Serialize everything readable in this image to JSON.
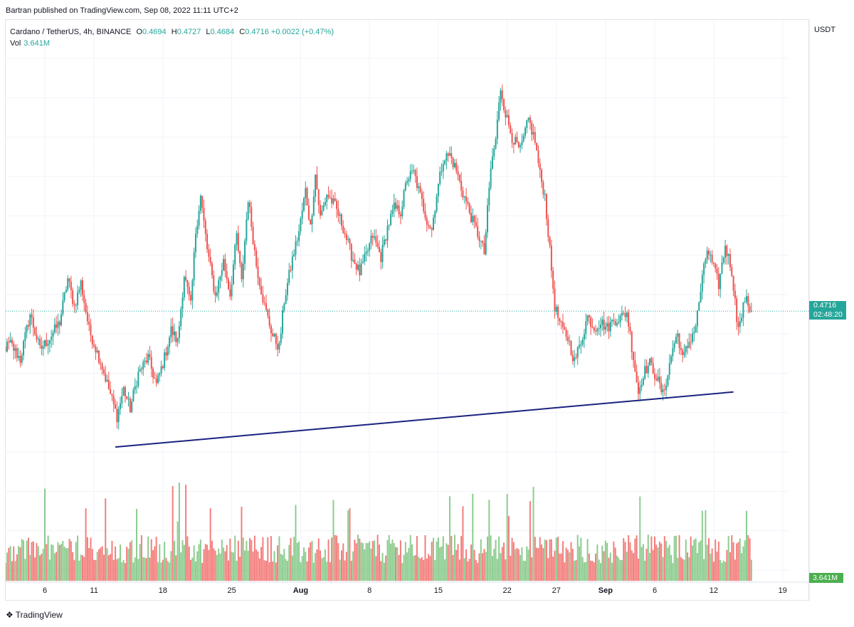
{
  "header": {
    "publish_line": "Bartran published on TradingView.com, Sep 08, 2022 11:11 UTC+2"
  },
  "legend": {
    "symbol": "Cardano / TetherUS, 4h, BINANCE",
    "o_label": "O",
    "o": "0.4694",
    "h_label": "H",
    "h": "0.4727",
    "l_label": "L",
    "l": "0.4684",
    "c_label": "C",
    "c": "0.4716",
    "change": "+0.0022 (+0.47%)",
    "vol_label": "Vol",
    "vol_value": "3.641M"
  },
  "axis": {
    "currency": "USDT",
    "price_label": "0.4716",
    "countdown": "02:48:20",
    "vol_label": "3.641M"
  },
  "footer": {
    "brand": "TradingView",
    "brand_icon": "tradingview-logo-icon"
  },
  "colors": {
    "up": "#26a69a",
    "down": "#ef5350",
    "vol_up": "#66bb6a",
    "vol_down": "#ef5350",
    "trendline": "#1a237e"
  },
  "chart_data": {
    "type": "candlestick",
    "symbol": "ADA/USDT",
    "interval": "4h",
    "ylim": [
      0.335,
      0.618
    ],
    "y_ticks": [
      "0.6000",
      "0.5800",
      "0.5600",
      "0.5400",
      "0.5200",
      "0.5000",
      "0.4800",
      "0.4600",
      "0.4400",
      "0.4200",
      "0.4000",
      "0.3800",
      "0.3600",
      "0.3400"
    ],
    "x_ticks": [
      {
        "label": "6",
        "date": "2022-07-06",
        "bold": false
      },
      {
        "label": "11",
        "date": "2022-07-11",
        "bold": false
      },
      {
        "label": "18",
        "date": "2022-07-18",
        "bold": false
      },
      {
        "label": "25",
        "date": "2022-07-25",
        "bold": false
      },
      {
        "label": "Aug",
        "date": "2022-08-01",
        "bold": true
      },
      {
        "label": "8",
        "date": "2022-08-08",
        "bold": false
      },
      {
        "label": "15",
        "date": "2022-08-15",
        "bold": false
      },
      {
        "label": "22",
        "date": "2022-08-22",
        "bold": false
      },
      {
        "label": "27",
        "date": "2022-08-27",
        "bold": false
      },
      {
        "label": "Sep",
        "date": "2022-09-01",
        "bold": true
      },
      {
        "label": "6",
        "date": "2022-09-06",
        "bold": false
      },
      {
        "label": "12",
        "date": "2022-09-12",
        "bold": false
      },
      {
        "label": "19",
        "date": "2022-09-19",
        "bold": false
      }
    ],
    "last_price": 0.4716,
    "trendline": {
      "start": [
        "2022-07-13 04:00",
        0.4025
      ],
      "end": [
        "2022-09-14 00:00",
        0.4305
      ]
    },
    "price_path": [
      [
        "2022-07-01 00:00",
        0.449
      ],
      [
        "2022-07-02 12:00",
        0.455
      ],
      [
        "2022-07-03 12:00",
        0.447
      ],
      [
        "2022-07-04 12:00",
        0.47
      ],
      [
        "2022-07-05 12:00",
        0.452
      ],
      [
        "2022-07-06 12:00",
        0.458
      ],
      [
        "2022-07-07 12:00",
        0.466
      ],
      [
        "2022-07-08 08:00",
        0.488
      ],
      [
        "2022-07-09 00:00",
        0.474
      ],
      [
        "2022-07-09 16:00",
        0.486
      ],
      [
        "2022-07-10 12:00",
        0.462
      ],
      [
        "2022-07-11 16:00",
        0.446
      ],
      [
        "2022-07-12 12:00",
        0.432
      ],
      [
        "2022-07-13 08:00",
        0.418
      ],
      [
        "2022-07-14 00:00",
        0.432
      ],
      [
        "2022-07-14 16:00",
        0.422
      ],
      [
        "2022-07-15 12:00",
        0.44
      ],
      [
        "2022-07-16 12:00",
        0.448
      ],
      [
        "2022-07-17 08:00",
        0.434
      ],
      [
        "2022-07-18 04:00",
        0.448
      ],
      [
        "2022-07-18 20:00",
        0.462
      ],
      [
        "2022-07-19 12:00",
        0.456
      ],
      [
        "2022-07-20 04:00",
        0.49
      ],
      [
        "2022-07-20 20:00",
        0.474
      ],
      [
        "2022-07-21 08:00",
        0.512
      ],
      [
        "2022-07-21 20:00",
        0.53
      ],
      [
        "2022-07-22 12:00",
        0.503
      ],
      [
        "2022-07-23 08:00",
        0.479
      ],
      [
        "2022-07-24 04:00",
        0.497
      ],
      [
        "2022-07-24 20:00",
        0.48
      ],
      [
        "2022-07-25 12:00",
        0.51
      ],
      [
        "2022-07-26 00:00",
        0.486
      ],
      [
        "2022-07-26 16:00",
        0.529
      ],
      [
        "2022-07-27 12:00",
        0.495
      ],
      [
        "2022-07-28 08:00",
        0.474
      ],
      [
        "2022-07-29 04:00",
        0.459
      ],
      [
        "2022-07-29 20:00",
        0.453
      ],
      [
        "2022-07-30 08:00",
        0.477
      ],
      [
        "2022-07-31 04:00",
        0.498
      ],
      [
        "2022-07-31 20:00",
        0.512
      ],
      [
        "2022-08-01 12:00",
        0.533
      ],
      [
        "2022-08-02 00:00",
        0.514
      ],
      [
        "2022-08-02 12:00",
        0.541
      ],
      [
        "2022-08-03 00:00",
        0.519
      ],
      [
        "2022-08-03 16:00",
        0.531
      ],
      [
        "2022-08-04 12:00",
        0.525
      ],
      [
        "2022-08-05 08:00",
        0.514
      ],
      [
        "2022-08-06 04:00",
        0.5
      ],
      [
        "2022-08-07 00:00",
        0.491
      ],
      [
        "2022-08-07 16:00",
        0.5
      ],
      [
        "2022-08-08 08:00",
        0.51
      ],
      [
        "2022-08-09 04:00",
        0.499
      ],
      [
        "2022-08-09 20:00",
        0.514
      ],
      [
        "2022-08-10 12:00",
        0.524
      ],
      [
        "2022-08-11 04:00",
        0.522
      ],
      [
        "2022-08-11 20:00",
        0.539
      ],
      [
        "2022-08-12 12:00",
        0.542
      ],
      [
        "2022-08-13 04:00",
        0.53
      ],
      [
        "2022-08-13 20:00",
        0.518
      ],
      [
        "2022-08-14 08:00",
        0.513
      ],
      [
        "2022-08-14 20:00",
        0.531
      ],
      [
        "2022-08-15 12:00",
        0.549
      ],
      [
        "2022-08-16 04:00",
        0.551
      ],
      [
        "2022-08-16 20:00",
        0.543
      ],
      [
        "2022-08-17 08:00",
        0.534
      ],
      [
        "2022-08-17 20:00",
        0.527
      ],
      [
        "2022-08-18 12:00",
        0.517
      ],
      [
        "2022-08-19 04:00",
        0.509
      ],
      [
        "2022-08-19 16:00",
        0.501
      ],
      [
        "2022-08-20 08:00",
        0.544
      ],
      [
        "2022-08-20 20:00",
        0.559
      ],
      [
        "2022-08-21 08:00",
        0.585
      ],
      [
        "2022-08-21 20:00",
        0.572
      ],
      [
        "2022-08-22 12:00",
        0.56
      ],
      [
        "2022-08-23 08:00",
        0.553
      ],
      [
        "2022-08-24 04:00",
        0.569
      ],
      [
        "2022-08-24 20:00",
        0.558
      ],
      [
        "2022-08-25 08:00",
        0.541
      ],
      [
        "2022-08-25 20:00",
        0.53
      ],
      [
        "2022-08-26 08:00",
        0.502
      ],
      [
        "2022-08-26 20:00",
        0.474
      ],
      [
        "2022-08-27 12:00",
        0.463
      ],
      [
        "2022-08-28 04:00",
        0.458
      ],
      [
        "2022-08-28 20:00",
        0.446
      ],
      [
        "2022-08-29 12:00",
        0.456
      ],
      [
        "2022-08-30 04:00",
        0.469
      ],
      [
        "2022-08-30 20:00",
        0.463
      ],
      [
        "2022-08-31 12:00",
        0.466
      ],
      [
        "2022-09-01 04:00",
        0.463
      ],
      [
        "2022-09-01 20:00",
        0.467
      ],
      [
        "2022-09-02 12:00",
        0.468
      ],
      [
        "2022-09-03 04:00",
        0.471
      ],
      [
        "2022-09-03 20:00",
        0.448
      ],
      [
        "2022-09-04 08:00",
        0.43
      ],
      [
        "2022-09-04 20:00",
        0.44
      ],
      [
        "2022-09-05 12:00",
        0.445
      ],
      [
        "2022-09-06 04:00",
        0.438
      ],
      [
        "2022-09-06 20:00",
        0.429
      ],
      [
        "2022-09-07 08:00",
        0.44
      ],
      [
        "2022-09-07 20:00",
        0.453
      ],
      [
        "2022-09-08 08:00",
        0.46
      ],
      [
        "2022-09-08 20:00",
        0.447
      ],
      [
        "2022-09-09 12:00",
        0.456
      ],
      [
        "2022-09-10 04:00",
        0.464
      ],
      [
        "2022-09-10 20:00",
        0.488
      ],
      [
        "2022-09-11 08:00",
        0.503
      ],
      [
        "2022-09-11 20:00",
        0.496
      ],
      [
        "2022-09-12 12:00",
        0.485
      ],
      [
        "2022-09-13 04:00",
        0.505
      ],
      [
        "2022-09-13 20:00",
        0.492
      ],
      [
        "2022-09-14 08:00",
        0.468
      ],
      [
        "2022-09-14 16:00",
        0.465
      ],
      [
        "2022-09-15 04:00",
        0.478
      ],
      [
        "2022-09-15 20:00",
        0.4716
      ]
    ]
  }
}
